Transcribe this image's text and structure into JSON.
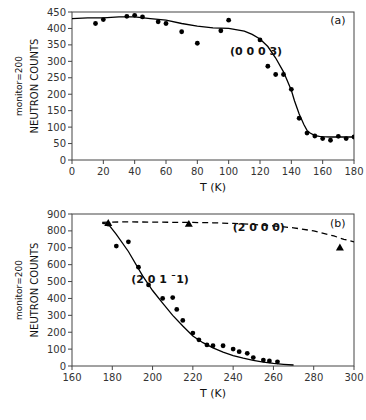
{
  "chart_data": [
    {
      "type": "scatter",
      "xlabel": "T (K)",
      "ylabel": "NEUTRON COUNTS",
      "ylabel2": "monitor=200",
      "annotations": [
        "(0 0 0 3)",
        "(a)"
      ],
      "xlim": [
        0,
        180
      ],
      "ylim": [
        0,
        450
      ],
      "xticks": [
        0,
        20,
        40,
        60,
        80,
        100,
        120,
        140,
        160,
        180
      ],
      "yticks": [
        0,
        50,
        100,
        150,
        200,
        250,
        300,
        350,
        400,
        450
      ],
      "grid": false,
      "series": [
        {
          "type": "scatter",
          "marker": "circle",
          "color": "#000000",
          "x": [
            15,
            20,
            35,
            40,
            45,
            55,
            60,
            70,
            80,
            95,
            100,
            120,
            125,
            130,
            135,
            140,
            145,
            150,
            155,
            160,
            165,
            170,
            175,
            180
          ],
          "values": [
            415,
            427,
            437,
            440,
            435,
            420,
            415,
            390,
            355,
            393,
            425,
            365,
            285,
            260,
            260,
            215,
            127,
            82,
            73,
            65,
            60,
            72,
            65,
            70
          ]
        },
        {
          "type": "line",
          "line_style": "solid",
          "color": "#000000",
          "x": [
            0,
            10,
            20,
            30,
            40,
            50,
            60,
            70,
            80,
            90,
            100,
            110,
            115,
            120,
            125,
            130,
            135,
            140,
            142,
            145,
            148,
            150,
            152,
            155,
            158,
            160,
            165,
            170,
            175,
            180
          ],
          "values": [
            430,
            432,
            432,
            435,
            435,
            430,
            425,
            415,
            407,
            402,
            400,
            392,
            382,
            368,
            345,
            310,
            268,
            212,
            180,
            140,
            108,
            90,
            82,
            74,
            72,
            71,
            70,
            70,
            70,
            70
          ]
        }
      ]
    },
    {
      "type": "scatter",
      "xlabel": "T (K)",
      "ylabel": "NEUTRON COUNTS",
      "ylabel2": "monitor=200",
      "annotations": [
        "(2 0 0 0)",
        "(2 0 1 ¯1)",
        "(b)"
      ],
      "xlim": [
        160,
        300
      ],
      "ylim": [
        0,
        900
      ],
      "xticks": [
        160,
        180,
        200,
        220,
        240,
        260,
        280,
        300
      ],
      "yticks": [
        0,
        100,
        200,
        300,
        400,
        500,
        600,
        700,
        800,
        900
      ],
      "grid": false,
      "series": [
        {
          "type": "scatter",
          "marker": "circle",
          "color": "#000000",
          "x": [
            178,
            182,
            188,
            193,
            198,
            205,
            210,
            212,
            215,
            220,
            223,
            227,
            230,
            235,
            240,
            243,
            247,
            250,
            255,
            258,
            262
          ],
          "values": [
            840,
            710,
            735,
            585,
            480,
            400,
            405,
            335,
            270,
            195,
            155,
            125,
            120,
            120,
            100,
            85,
            75,
            50,
            35,
            30,
            25
          ]
        },
        {
          "type": "line",
          "line_style": "solid",
          "color": "#000000",
          "x": [
            175,
            178,
            182,
            188,
            195,
            200,
            205,
            210,
            215,
            220,
            225,
            230,
            235,
            240,
            245,
            250,
            255,
            260,
            265,
            270
          ],
          "values": [
            845,
            840,
            780,
            678,
            535,
            447,
            372,
            300,
            237,
            178,
            138,
            107,
            82,
            62,
            46,
            33,
            23,
            15,
            10,
            6
          ]
        },
        {
          "type": "scatter",
          "marker": "triangle",
          "color": "#000000",
          "x": [
            178,
            218,
            293
          ],
          "values": [
            845,
            840,
            700
          ]
        },
        {
          "type": "line",
          "line_style": "dashed",
          "color": "#000000",
          "x": [
            175,
            178,
            185,
            190,
            200,
            210,
            220,
            230,
            240,
            250,
            260,
            270,
            280,
            290,
            295,
            300
          ],
          "values": [
            850,
            852,
            853,
            853,
            852,
            851,
            850,
            848,
            844,
            838,
            830,
            818,
            800,
            770,
            750,
            735
          ]
        }
      ]
    }
  ]
}
